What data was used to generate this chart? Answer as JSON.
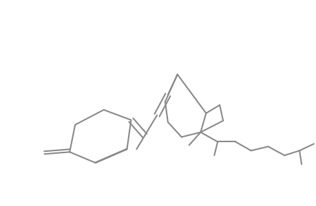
{
  "line_color": "#888888",
  "bg_color": "#ffffff",
  "lw": 1.5,
  "figsize": [
    4.6,
    3.0
  ],
  "dpi": 100
}
